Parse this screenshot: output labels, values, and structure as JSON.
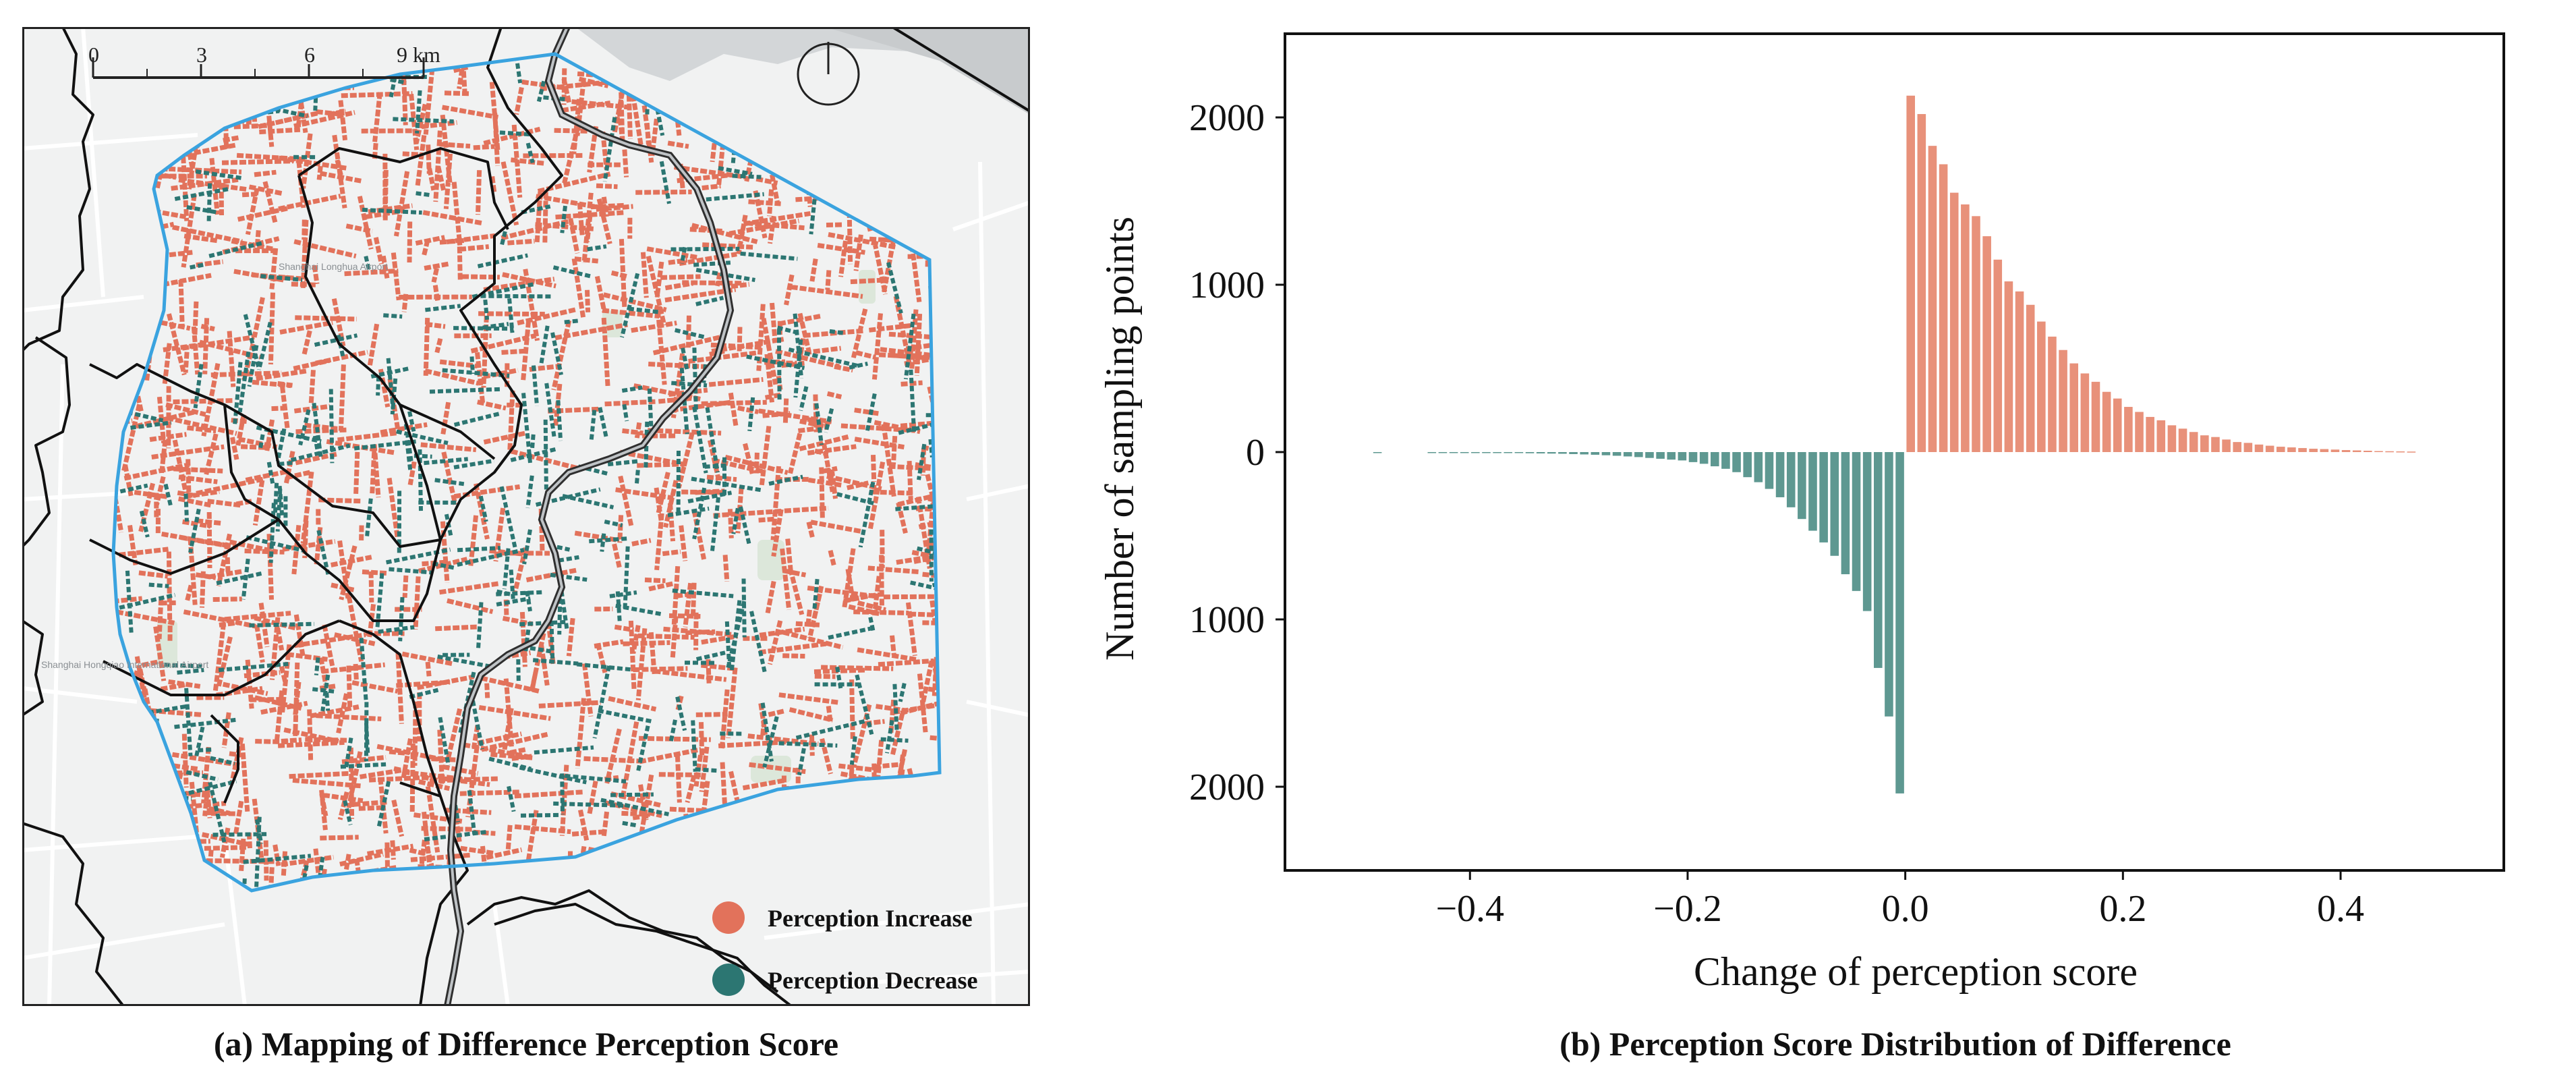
{
  "map": {
    "scale_ticks": [
      "0",
      "3",
      "6",
      "9 km"
    ],
    "legend": [
      {
        "label": "Perception Increase",
        "color": "#E2725B"
      },
      {
        "label": "Perception Decrease",
        "color": "#2C7672"
      }
    ],
    "place_labels": [
      "Shanghai Hongqiao International Airport",
      "Shanghai Longhua Airport"
    ],
    "colors": {
      "ring_road": "#3AA3DF",
      "district_border": "#111111",
      "river": "#333333",
      "water": "#D3D6D8",
      "land": "#F1F2F2"
    }
  },
  "captions": {
    "a": "(a) Mapping of Difference Perception Score",
    "b": "(b) Perception Score Distribution of Difference"
  },
  "chart_data": {
    "type": "bar",
    "title": "",
    "xlabel": "Change of perception score",
    "ylabel": "Number of sampling points",
    "xlim": [
      -0.57,
      0.55
    ],
    "ylim": [
      -2500,
      2500
    ],
    "xticks": [
      -0.4,
      -0.2,
      0.0,
      0.2,
      0.4
    ],
    "xtick_labels": [
      "−0.4",
      "−0.2",
      "0.0",
      "0.2",
      "0.4"
    ],
    "yticks": [
      2000,
      1000,
      0,
      -1000,
      -2000
    ],
    "ytick_labels": [
      "2000",
      "1000",
      "0",
      "1000",
      "2000"
    ],
    "bin_width": 0.01,
    "series": [
      {
        "name": "Perception Increase",
        "color": "#E8917A",
        "x": [
          0.005,
          0.015,
          0.025,
          0.035,
          0.045,
          0.055,
          0.065,
          0.075,
          0.085,
          0.095,
          0.105,
          0.115,
          0.125,
          0.135,
          0.145,
          0.155,
          0.165,
          0.175,
          0.185,
          0.195,
          0.205,
          0.215,
          0.225,
          0.235,
          0.245,
          0.255,
          0.265,
          0.275,
          0.285,
          0.295,
          0.305,
          0.315,
          0.325,
          0.335,
          0.345,
          0.355,
          0.365,
          0.375,
          0.385,
          0.395,
          0.405,
          0.415,
          0.425,
          0.435,
          0.445,
          0.455,
          0.465
        ],
        "values": [
          2130,
          2020,
          1830,
          1720,
          1550,
          1480,
          1410,
          1290,
          1150,
          1020,
          960,
          880,
          780,
          690,
          610,
          530,
          470,
          420,
          360,
          320,
          270,
          240,
          210,
          190,
          160,
          140,
          120,
          100,
          90,
          75,
          60,
          55,
          45,
          38,
          32,
          28,
          24,
          20,
          18,
          15,
          12,
          10,
          8,
          6,
          5,
          4,
          3
        ]
      },
      {
        "name": "Perception Decrease",
        "color": "#5E9891",
        "x": [
          -0.005,
          -0.015,
          -0.025,
          -0.035,
          -0.045,
          -0.055,
          -0.065,
          -0.075,
          -0.085,
          -0.095,
          -0.105,
          -0.115,
          -0.125,
          -0.135,
          -0.145,
          -0.155,
          -0.165,
          -0.175,
          -0.185,
          -0.195,
          -0.205,
          -0.215,
          -0.225,
          -0.235,
          -0.245,
          -0.255,
          -0.265,
          -0.275,
          -0.285,
          -0.295,
          -0.305,
          -0.315,
          -0.325,
          -0.335,
          -0.345,
          -0.355,
          -0.365,
          -0.375,
          -0.385,
          -0.395,
          -0.405,
          -0.415,
          -0.425,
          -0.435,
          -0.485
        ],
        "values": [
          -2040,
          -1580,
          -1290,
          -950,
          -830,
          -730,
          -620,
          -540,
          -470,
          -400,
          -330,
          -270,
          -220,
          -180,
          -150,
          -120,
          -100,
          -85,
          -70,
          -60,
          -50,
          -45,
          -40,
          -35,
          -30,
          -26,
          -22,
          -19,
          -16,
          -14,
          -12,
          -10,
          -9,
          -8,
          -7,
          -6,
          -5,
          -4,
          -3,
          -3,
          -2,
          -2,
          -1,
          -1,
          -1
        ]
      }
    ]
  }
}
